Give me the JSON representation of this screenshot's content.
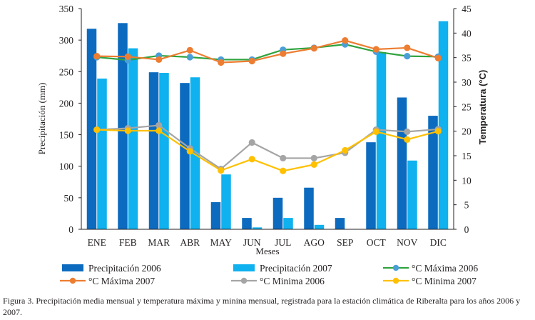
{
  "chart_data": {
    "type": "bar",
    "categories": [
      "ENE",
      "FEB",
      "MAR",
      "ABR",
      "MAY",
      "JUN",
      "JUL",
      "AGO",
      "SEP",
      "OCT",
      "NOV",
      "DIC"
    ],
    "xlabel": "Meses",
    "ylabel": "Precipitación (mm)",
    "ylabel_right": "Temperatura (°C)",
    "ylim": [
      0,
      350
    ],
    "ylim_right": [
      0,
      45
    ],
    "yticks": [
      "0",
      "50",
      "100",
      "150",
      "200",
      "250",
      "300",
      "350"
    ],
    "yticks_right": [
      "0",
      "5",
      "10",
      "15",
      "20",
      "25",
      "30",
      "35",
      "40",
      "45"
    ],
    "grid": false,
    "legend_position": "bottom",
    "series": [
      {
        "name": "Precipitación 2006",
        "kind": "bar",
        "axis": "left",
        "color": "#0c6bbf",
        "values": [
          318,
          327,
          249,
          232,
          43,
          18,
          50,
          66,
          18,
          138,
          209,
          180
        ]
      },
      {
        "name": "Precipitación 2007",
        "kind": "bar",
        "axis": "left",
        "color": "#0fb1ee",
        "values": [
          239,
          287,
          248,
          241,
          87,
          3,
          18,
          7,
          0,
          281,
          109,
          330
        ]
      },
      {
        "name": "°C Máxima 2006",
        "kind": "line",
        "axis": "right",
        "color": "#2fa33e",
        "marker": "#4a9fd8",
        "values": [
          35.1,
          34.5,
          35.4,
          35.1,
          34.6,
          34.6,
          36.6,
          37.0,
          37.7,
          36.2,
          35.3,
          35.2
        ]
      },
      {
        "name": "°C Máxima 2007",
        "kind": "line",
        "axis": "right",
        "color": "#ed7d31",
        "marker": "#ed7d31",
        "values": [
          35.3,
          35.2,
          34.6,
          36.5,
          34.0,
          34.3,
          35.8,
          36.9,
          38.5,
          36.7,
          37.0,
          34.9
        ]
      },
      {
        "name": "°C Minima 2006",
        "kind": "line",
        "axis": "right",
        "color": "#a5a5a5",
        "marker": "#a5a5a5",
        "values": [
          20.3,
          20.6,
          21.2,
          16.5,
          12.3,
          17.7,
          14.5,
          14.5,
          15.6,
          20.3,
          19.9,
          20.4
        ]
      },
      {
        "name": "°C Minima 2007",
        "kind": "line",
        "axis": "right",
        "color": "#ffc000",
        "marker": "#ffc000",
        "values": [
          20.3,
          20.1,
          20.1,
          15.9,
          12.0,
          14.3,
          11.9,
          13.2,
          16.1,
          19.9,
          18.3,
          20.0
        ]
      }
    ]
  },
  "caption": "Figura 3. Precipitación media mensual y temperatura máxima y minina mensual, registrada para la estación climática de Riberalta para los años 2006 y 2007."
}
